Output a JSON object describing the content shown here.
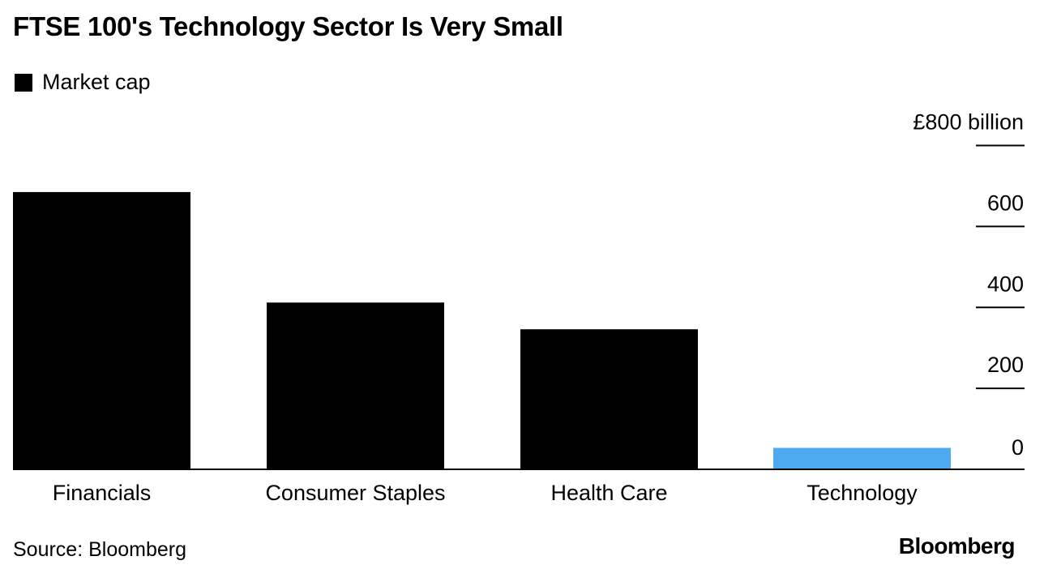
{
  "title": "FTSE 100's Technology Sector Is Very Small",
  "source": "Source: Bloomberg",
  "brand": "Bloomberg",
  "chart_data": {
    "type": "bar",
    "title": "FTSE 100's Technology Sector Is Very Small",
    "categories": [
      "Financials",
      "Consumer Staples",
      "Health Care",
      "Technology"
    ],
    "series": [
      {
        "name": "Market cap",
        "values": [
          685,
          412,
          346,
          53
        ]
      }
    ],
    "colors": [
      "#000000",
      "#000000",
      "#000000",
      "#4eaaf0"
    ],
    "legend_color": "#000000",
    "ylim": [
      0,
      800
    ],
    "yticks": [
      0,
      200,
      400,
      600,
      800
    ],
    "ytick_labels": [
      "0",
      "200",
      "400",
      "600",
      "£800 billion"
    ],
    "yaxis_position": "right",
    "legend_position": "top-left",
    "grid": false
  }
}
